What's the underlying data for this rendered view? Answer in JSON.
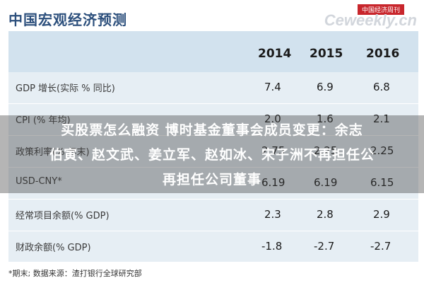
{
  "header": {
    "title": "中国宏观经济预测",
    "logo_badge": "中国经济周刊",
    "logo_text": "Ceweekly.cn"
  },
  "table": {
    "years": [
      "2014",
      "2015",
      "2016"
    ],
    "rows": [
      {
        "label": "GDP 增长(实际 % 同比)",
        "values": [
          "7.4",
          "6.9",
          "6.8"
        ]
      },
      {
        "label": "CPI (% 年均)",
        "values": [
          "2.0",
          "1.6",
          "2.1"
        ]
      },
      {
        "label": "政策利率(% 年末)",
        "values": [
          "2.75",
          "2.25",
          "2.25"
        ]
      },
      {
        "label": "USD-CNY*",
        "values": [
          "6.19",
          "6.19",
          "6.15"
        ]
      },
      {
        "label": "经常项目余额(% GDP)",
        "values": [
          "2.3",
          "2.8",
          "2.9"
        ]
      },
      {
        "label": "财政余额(% GDP)",
        "values": [
          "-1.8",
          "-2.7",
          "-2.7"
        ]
      }
    ]
  },
  "overlay": {
    "line1": "买股票怎么融资 博时基金董事会成员变更：余志",
    "line2": "伯寅、赵文武、姜立军、赵如冰、宋子洲不再担任公",
    "line3": "再担任公司董事"
  },
  "footnote": "*期末;    数据来源：渣打银行全球研究部"
}
